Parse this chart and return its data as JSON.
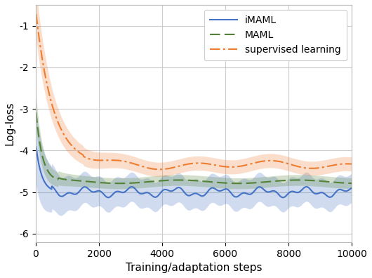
{
  "title": "",
  "xlabel": "Training/adaptation steps",
  "ylabel": "Log-loss",
  "xlim": [
    0,
    10000
  ],
  "ylim": [
    -6.2,
    -0.5
  ],
  "yticks": [
    -6,
    -5,
    -4,
    -3,
    -2,
    -1
  ],
  "ytick_labels": [
    "-6",
    "-5",
    "-4",
    "-3",
    "-2",
    "-1"
  ],
  "xticks": [
    0,
    2000,
    4000,
    6000,
    8000,
    10000
  ],
  "legend_entries": [
    "iMAML",
    "MAML",
    "supervised learning"
  ],
  "imaml_color": "#4472C4",
  "maml_color": "#538135",
  "sl_color": "#ED7D31",
  "figsize": [
    5.3,
    3.96
  ],
  "dpi": 100,
  "imaml_lw": 1.5,
  "maml_lw": 1.5,
  "sl_lw": 1.5,
  "fill_alpha": 0.25
}
